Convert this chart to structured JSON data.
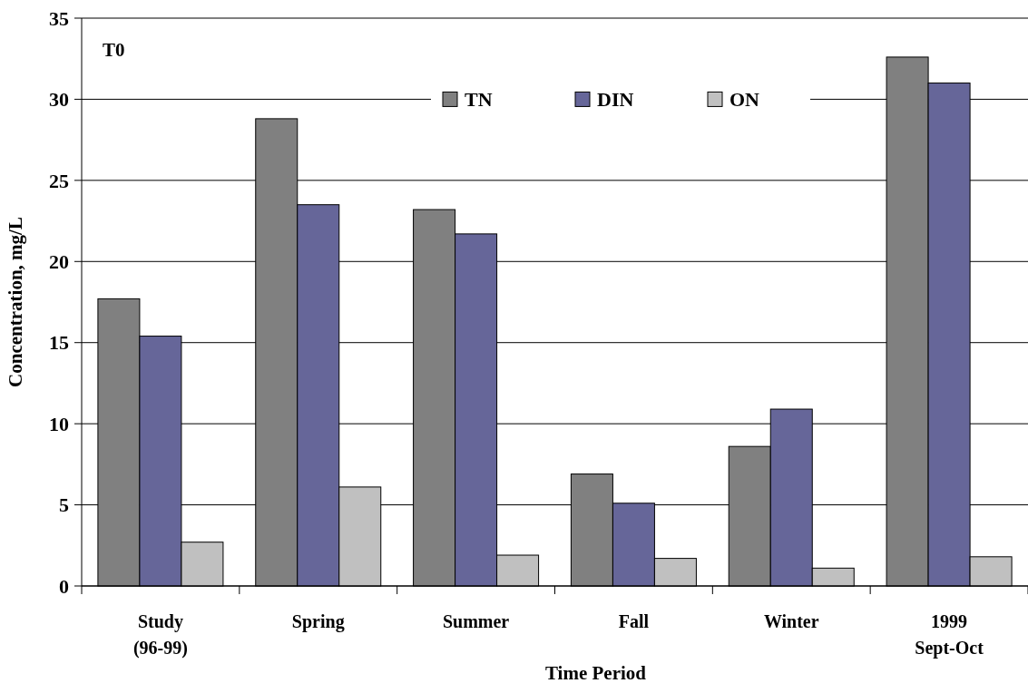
{
  "chart_data": {
    "type": "bar",
    "title": "T0",
    "xlabel": "Time Period",
    "ylabel": "Concentration, mg/L",
    "categories": [
      "Study (96-99)",
      "Spring",
      "Summer",
      "Fall",
      "Winter",
      "1999 Sept-Oct"
    ],
    "series": [
      {
        "name": "TN",
        "color": "#808080",
        "values": [
          17.7,
          28.8,
          23.2,
          6.9,
          8.6,
          32.6
        ]
      },
      {
        "name": "DIN",
        "color": "#666699",
        "values": [
          15.4,
          23.5,
          21.7,
          5.1,
          10.9,
          31.0
        ]
      },
      {
        "name": "ON",
        "color": "#c0c0c0",
        "values": [
          2.7,
          6.1,
          1.9,
          1.7,
          1.1,
          1.8
        ]
      }
    ],
    "ylim": [
      0,
      35
    ],
    "yticks": [
      0,
      5,
      10,
      15,
      20,
      25,
      30,
      35
    ],
    "grid": "y",
    "legend": "top"
  }
}
